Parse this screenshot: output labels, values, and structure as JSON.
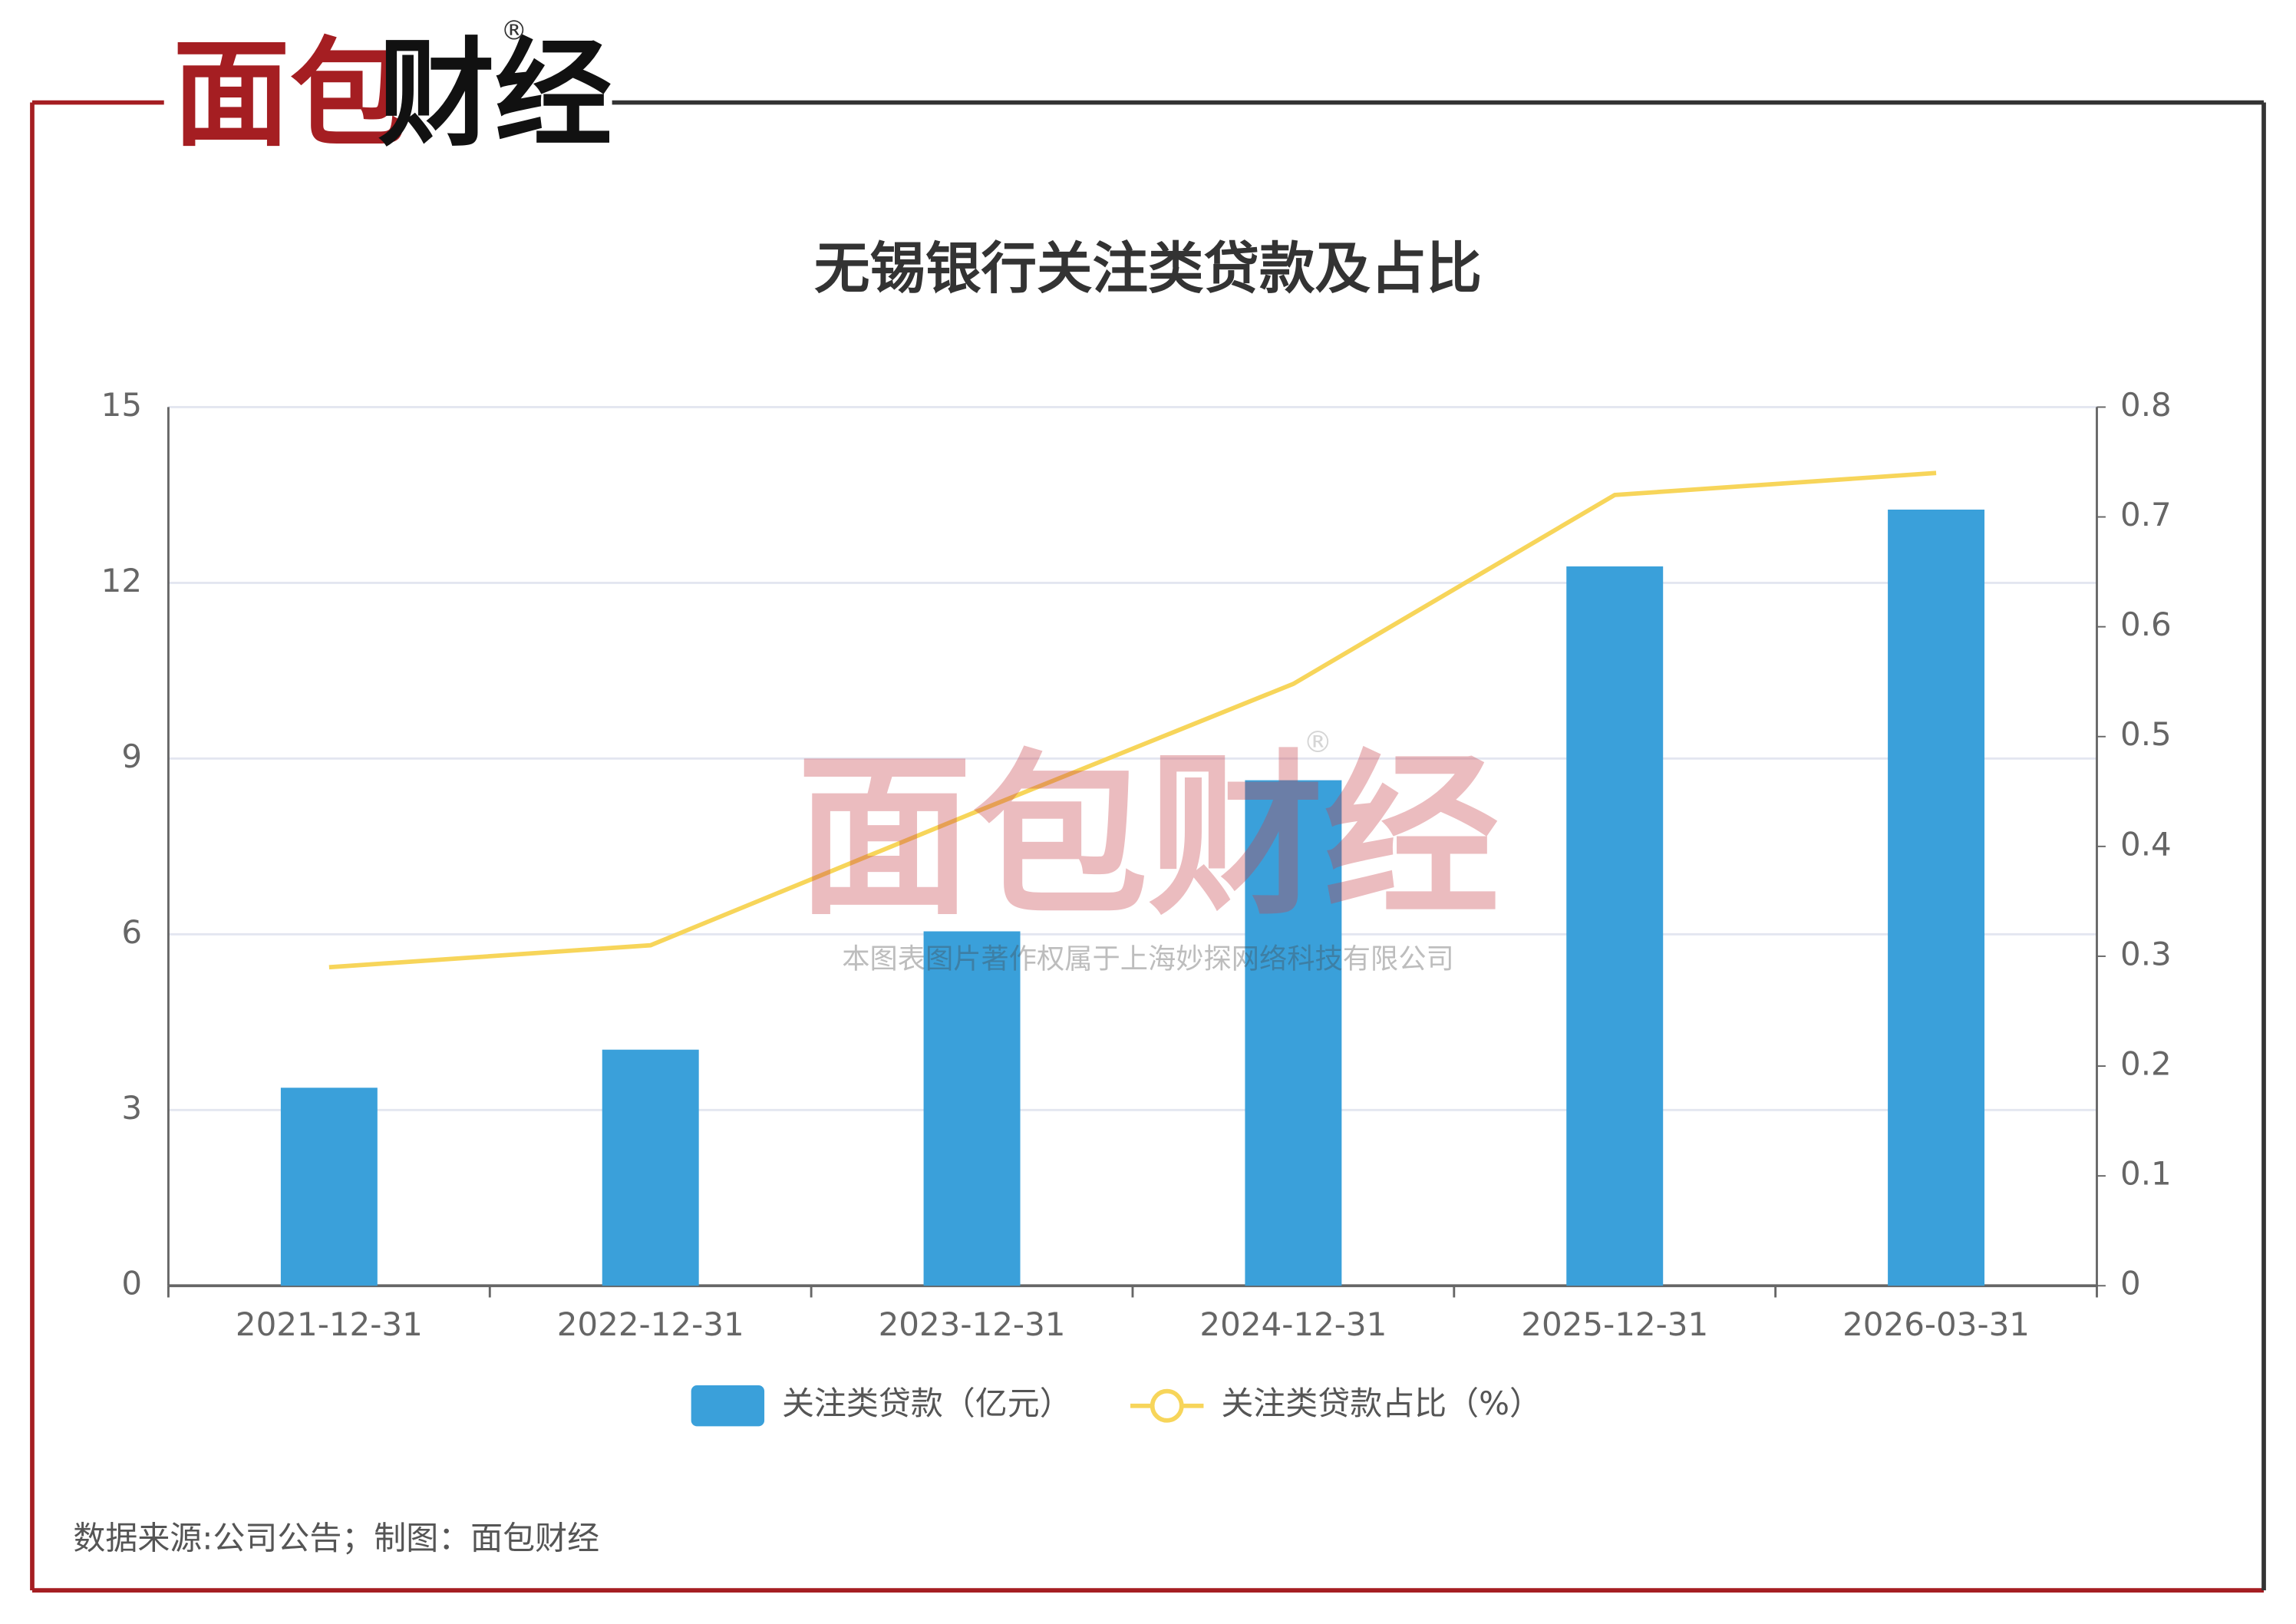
{
  "logo": {
    "part1": "面包",
    "part2": "财经",
    "mark": "®"
  },
  "watermark": {
    "logo": "面包财经",
    "mark": "®",
    "text": "本图表图片著作权属于上海妙探网络科技有限公司"
  },
  "source": "数据来源:公司公告；制图：面包财经",
  "chart_data": {
    "type": "bar",
    "title": "无锡银行关注类贷款及占比",
    "categories": [
      "2021-12-31",
      "2022-12-31",
      "2023-12-31",
      "2024-12-31",
      "2025-12-31",
      "2026-03-31"
    ],
    "series": [
      {
        "name": "关注类贷款（亿元）",
        "type": "bar",
        "color": "#3aa0da",
        "values": [
          3.38,
          4.03,
          6.05,
          8.63,
          12.28,
          13.25
        ]
      },
      {
        "name": "关注类贷款占比（%）",
        "type": "line",
        "axis": "y2",
        "color": "#f7d55a",
        "values": [
          0.29,
          0.31,
          0.43,
          0.548,
          0.72,
          0.74
        ]
      }
    ],
    "ylim": [
      0,
      15
    ],
    "yticks": [
      0,
      3,
      6,
      9,
      12,
      15
    ],
    "y2lim": [
      0,
      0.8
    ],
    "y2ticks": [
      0,
      0.1,
      0.2,
      0.3,
      0.4,
      0.5,
      0.6,
      0.7,
      0.8
    ],
    "grid": true,
    "legend": "bottom"
  }
}
